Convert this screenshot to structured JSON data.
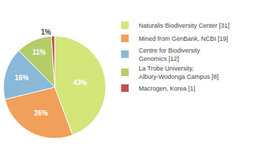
{
  "chart_data": {
    "type": "pie",
    "categories": [
      "Naturalis Biodiversity Center [31]",
      "Mined from GenBank, NCBI [19]",
      "Centre for Biodiversity\nGenomics [12]",
      "La Trobe University,\nAlbury-Wodonga Campus [8]",
      "Macrogen, Korea [1]"
    ],
    "values": [
      43,
      26,
      16,
      11,
      1
    ],
    "value_labels": [
      "43%",
      "26%",
      "16%",
      "11%",
      "1%"
    ],
    "colors": [
      "#d4e57a",
      "#f0a05a",
      "#89b8d8",
      "#b5cc6a",
      "#c0504d"
    ],
    "data_labels": true,
    "legend": "right"
  }
}
